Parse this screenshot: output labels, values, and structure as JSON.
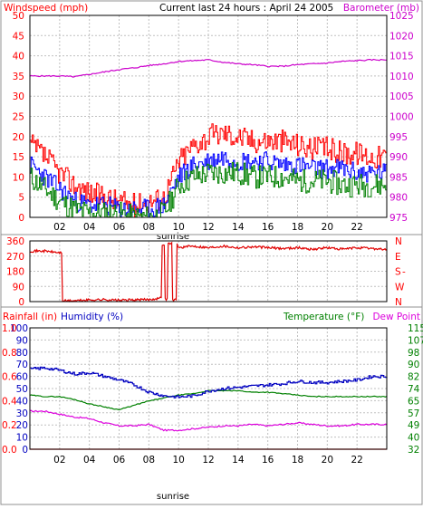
{
  "colors": {
    "wind": "#ff0000",
    "wind_avg": "#0000ff",
    "wind_low": "#008000",
    "barometer": "#cc00cc",
    "direction": "#e00000",
    "humidity": "#0000c0",
    "temperature": "#008000",
    "dewpoint": "#dd00dd",
    "rainfall": "#ff0000",
    "grid": "#c0c0c0",
    "frame": "#000000"
  },
  "chart_data": [
    {
      "type": "line",
      "title": "Current last 24 hours : April 24 2005",
      "left_axis_label": "Windspeed (mph)",
      "right_axis_label": "Barometer (mb)",
      "ylim_left": [
        0,
        50
      ],
      "ylim_right": [
        975,
        1025
      ],
      "left_ticks": [
        "0",
        "5",
        "10",
        "15",
        "20",
        "25",
        "30",
        "35",
        "40",
        "45",
        "50"
      ],
      "right_ticks": [
        "975",
        "980",
        "985",
        "990",
        "995",
        "1000",
        "1005",
        "1010",
        "1015",
        "1020",
        "1025"
      ],
      "x_hours": [
        0,
        24
      ],
      "x_ticks": [
        "02",
        "04",
        "06",
        "08",
        "10",
        "12",
        "14",
        "16",
        "18",
        "20",
        "22"
      ],
      "x_marker": "sunrise",
      "series": [
        {
          "id": "gust",
          "values": [
            [
              0,
              18
            ],
            [
              1,
              15
            ],
            [
              2,
              11
            ],
            [
              3,
              8
            ],
            [
              4,
              6
            ],
            [
              5,
              5
            ],
            [
              6,
              4
            ],
            [
              7,
              3
            ],
            [
              8,
              4
            ],
            [
              9,
              5
            ],
            [
              10,
              14
            ],
            [
              11,
              18
            ],
            [
              12,
              20
            ],
            [
              13,
              21
            ],
            [
              14,
              20
            ],
            [
              15,
              19
            ],
            [
              16,
              19
            ],
            [
              17,
              19
            ],
            [
              18,
              18
            ],
            [
              19,
              17
            ],
            [
              20,
              17
            ],
            [
              21,
              16
            ],
            [
              22,
              16
            ],
            [
              23,
              15
            ],
            [
              24,
              15
            ]
          ]
        },
        {
          "id": "average",
          "values": [
            [
              0,
              13
            ],
            [
              1,
              10
            ],
            [
              2,
              7
            ],
            [
              3,
              4
            ],
            [
              4,
              3
            ],
            [
              5,
              3
            ],
            [
              6,
              2
            ],
            [
              7,
              2
            ],
            [
              8,
              2
            ],
            [
              9,
              3
            ],
            [
              10,
              10
            ],
            [
              11,
              13
            ],
            [
              12,
              14
            ],
            [
              13,
              15
            ],
            [
              14,
              14
            ],
            [
              15,
              14
            ],
            [
              16,
              14
            ],
            [
              17,
              13
            ],
            [
              18,
              13
            ],
            [
              19,
              12
            ],
            [
              20,
              12
            ],
            [
              21,
              12
            ],
            [
              22,
              11
            ],
            [
              23,
              11
            ],
            [
              24,
              11
            ]
          ]
        },
        {
          "id": "low",
          "values": [
            [
              0,
              10
            ],
            [
              1,
              7
            ],
            [
              2,
              4
            ],
            [
              3,
              2
            ],
            [
              4,
              1
            ],
            [
              5,
              1
            ],
            [
              6,
              1
            ],
            [
              7,
              0
            ],
            [
              8,
              0
            ],
            [
              9,
              1
            ],
            [
              10,
              8
            ],
            [
              11,
              10
            ],
            [
              12,
              11
            ],
            [
              13,
              11
            ],
            [
              14,
              11
            ],
            [
              15,
              10
            ],
            [
              16,
              10
            ],
            [
              17,
              10
            ],
            [
              18,
              9
            ],
            [
              19,
              9
            ],
            [
              20,
              9
            ],
            [
              21,
              8
            ],
            [
              22,
              8
            ],
            [
              23,
              8
            ],
            [
              24,
              8
            ]
          ]
        },
        {
          "id": "barometer",
          "axis": "right",
          "values": [
            [
              0,
              1010
            ],
            [
              2,
              1010
            ],
            [
              3,
              1009.8
            ],
            [
              4,
              1010.4
            ],
            [
              5,
              1011
            ],
            [
              6,
              1011.6
            ],
            [
              7,
              1012
            ],
            [
              8,
              1012.6
            ],
            [
              9,
              1013
            ],
            [
              10,
              1013.6
            ],
            [
              11,
              1013.8
            ],
            [
              12,
              1014
            ],
            [
              13,
              1013.4
            ],
            [
              14,
              1013
            ],
            [
              15,
              1012.8
            ],
            [
              16,
              1012.4
            ],
            [
              17,
              1012.4
            ],
            [
              18,
              1012.8
            ],
            [
              19,
              1013
            ],
            [
              20,
              1013.2
            ],
            [
              21,
              1013.6
            ],
            [
              22,
              1013.8
            ],
            [
              23,
              1014
            ],
            [
              24,
              1014
            ]
          ]
        }
      ]
    },
    {
      "type": "line",
      "ylim": [
        0,
        360
      ],
      "left_ticks": [
        "0",
        "90",
        "180",
        "270",
        "360"
      ],
      "right_ticks": [
        "N",
        "W",
        "S",
        "E",
        "N"
      ],
      "right_tick_dash": "-",
      "series": [
        {
          "id": "direction",
          "values": [
            [
              0,
              300
            ],
            [
              1,
              300
            ],
            [
              2,
              290
            ],
            [
              2.2,
              5
            ],
            [
              3,
              5
            ],
            [
              4,
              10
            ],
            [
              5,
              12
            ],
            [
              6,
              8
            ],
            [
              7,
              10
            ],
            [
              8,
              12
            ],
            [
              8.7,
              20
            ],
            [
              8.9,
              340
            ],
            [
              9.1,
              15
            ],
            [
              9.3,
              345
            ],
            [
              9.6,
              10
            ],
            [
              9.9,
              340
            ],
            [
              10,
              320
            ],
            [
              11,
              330
            ],
            [
              12,
              320
            ],
            [
              13,
              330
            ],
            [
              14,
              320
            ],
            [
              15,
              325
            ],
            [
              16,
              320
            ],
            [
              17,
              315
            ],
            [
              18,
              320
            ],
            [
              19,
              310
            ],
            [
              20,
              320
            ],
            [
              21,
              310
            ],
            [
              22,
              320
            ],
            [
              23,
              315
            ],
            [
              24,
              310
            ]
          ]
        }
      ]
    },
    {
      "type": "line",
      "rain_axis_label": "Rainfall (in)",
      "humidity_label": "Humidity (%)",
      "temperature_label": "Temperature (°F)",
      "dewpoint_label": "Dew Point",
      "ylim_left": [
        0,
        100
      ],
      "ylim_right": [
        32,
        115
      ],
      "rain_ticks": [
        "0.0",
        "0.2",
        "0.4",
        "0.6",
        "0.8",
        "1.0"
      ],
      "humidity_ticks": [
        "0",
        "10",
        "20",
        "30",
        "40",
        "50",
        "60",
        "70",
        "80",
        "90",
        "100"
      ],
      "right_ticks": [
        "32",
        "40",
        "49",
        "57",
        "65",
        "74",
        "82",
        "90",
        "98",
        "107",
        "115"
      ],
      "x_ticks": [
        "02",
        "04",
        "06",
        "08",
        "10",
        "12",
        "14",
        "16",
        "18",
        "20",
        "22"
      ],
      "x_marker": "sunrise",
      "series": [
        {
          "id": "humidity",
          "axis": "left",
          "values": [
            [
              0,
              66
            ],
            [
              1,
              67
            ],
            [
              2,
              65
            ],
            [
              3,
              62
            ],
            [
              4,
              63
            ],
            [
              5,
              60
            ],
            [
              6,
              57
            ],
            [
              7,
              53
            ],
            [
              8,
              47
            ],
            [
              9,
              44
            ],
            [
              10,
              43
            ],
            [
              11,
              44
            ],
            [
              12,
              48
            ],
            [
              13,
              50
            ],
            [
              14,
              51
            ],
            [
              15,
              52
            ],
            [
              16,
              53
            ],
            [
              17,
              54
            ],
            [
              18,
              56
            ],
            [
              19,
              55
            ],
            [
              20,
              55
            ],
            [
              21,
              56
            ],
            [
              22,
              57
            ],
            [
              23,
              60
            ],
            [
              24,
              60
            ]
          ]
        },
        {
          "id": "temperature",
          "axis": "right",
          "values": [
            [
              0,
              69
            ],
            [
              1,
              68
            ],
            [
              2,
              68
            ],
            [
              3,
              66
            ],
            [
              4,
              63
            ],
            [
              5,
              61
            ],
            [
              6,
              59
            ],
            [
              7,
              62
            ],
            [
              8,
              65
            ],
            [
              9,
              67
            ],
            [
              10,
              69
            ],
            [
              11,
              70
            ],
            [
              12,
              72
            ],
            [
              13,
              72
            ],
            [
              14,
              72
            ],
            [
              15,
              71
            ],
            [
              16,
              71
            ],
            [
              17,
              70
            ],
            [
              18,
              69
            ],
            [
              19,
              68
            ],
            [
              20,
              68
            ],
            [
              21,
              68
            ],
            [
              22,
              68
            ],
            [
              23,
              68
            ],
            [
              24,
              68
            ]
          ]
        },
        {
          "id": "dewpoint",
          "axis": "right",
          "values": [
            [
              0,
              58
            ],
            [
              1,
              58
            ],
            [
              2,
              56
            ],
            [
              3,
              54
            ],
            [
              4,
              53
            ],
            [
              5,
              50
            ],
            [
              6,
              48
            ],
            [
              7,
              48
            ],
            [
              8,
              49
            ],
            [
              9,
              45
            ],
            [
              10,
              45
            ],
            [
              11,
              46
            ],
            [
              12,
              47
            ],
            [
              13,
              48
            ],
            [
              14,
              48
            ],
            [
              15,
              49
            ],
            [
              16,
              48
            ],
            [
              17,
              49
            ],
            [
              18,
              50
            ],
            [
              19,
              49
            ],
            [
              20,
              48
            ],
            [
              21,
              48
            ],
            [
              22,
              49
            ],
            [
              23,
              49
            ],
            [
              24,
              49
            ]
          ]
        },
        {
          "id": "rainfall",
          "axis": "rain",
          "values": [
            [
              0,
              0
            ],
            [
              24,
              0
            ]
          ]
        }
      ]
    }
  ]
}
